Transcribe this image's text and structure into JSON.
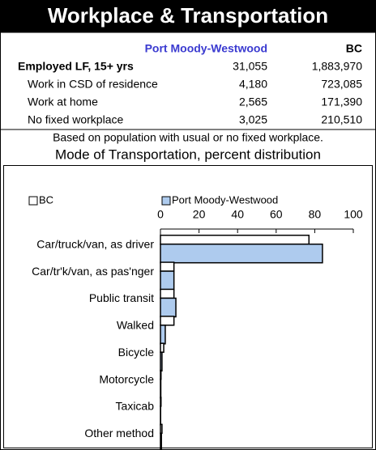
{
  "header": {
    "title": "Workplace & Transportation"
  },
  "table": {
    "columns": [
      "Port Moody-Westwood",
      "BC"
    ],
    "rows": [
      [
        "Employed LF, 15+ yrs",
        "31,055",
        "1,883,970"
      ],
      [
        "Work in CSD of residence",
        "4,180",
        "723,085"
      ],
      [
        "Work at home",
        "2,565",
        "171,390"
      ],
      [
        "No fixed workplace",
        "3,025",
        "210,510"
      ]
    ]
  },
  "note": "Based on population with usual or no fixed workplace.",
  "chart_data": {
    "type": "hbar",
    "title": "Mode of Transportation, percent distribution",
    "categories": [
      "Car/truck/van, as driver",
      "Car/tr'k/van, as pas'nger",
      "Public transit",
      "Walked",
      "Bicycle",
      "Motorcycle",
      "Taxicab",
      "Other method"
    ],
    "series": [
      {
        "name": "BC",
        "color": "#ffffff",
        "values": [
          77,
          7,
          7,
          7,
          1.7,
          0.3,
          0.3,
          0.8
        ]
      },
      {
        "name": "Port Moody-Westwood",
        "color": "#aecbee",
        "values": [
          84,
          7,
          8,
          2.5,
          0.8,
          0.2,
          0.1,
          0.5
        ]
      }
    ],
    "xlim": [
      0,
      100
    ],
    "xticks": [
      0,
      20,
      40,
      60,
      80,
      100
    ]
  }
}
